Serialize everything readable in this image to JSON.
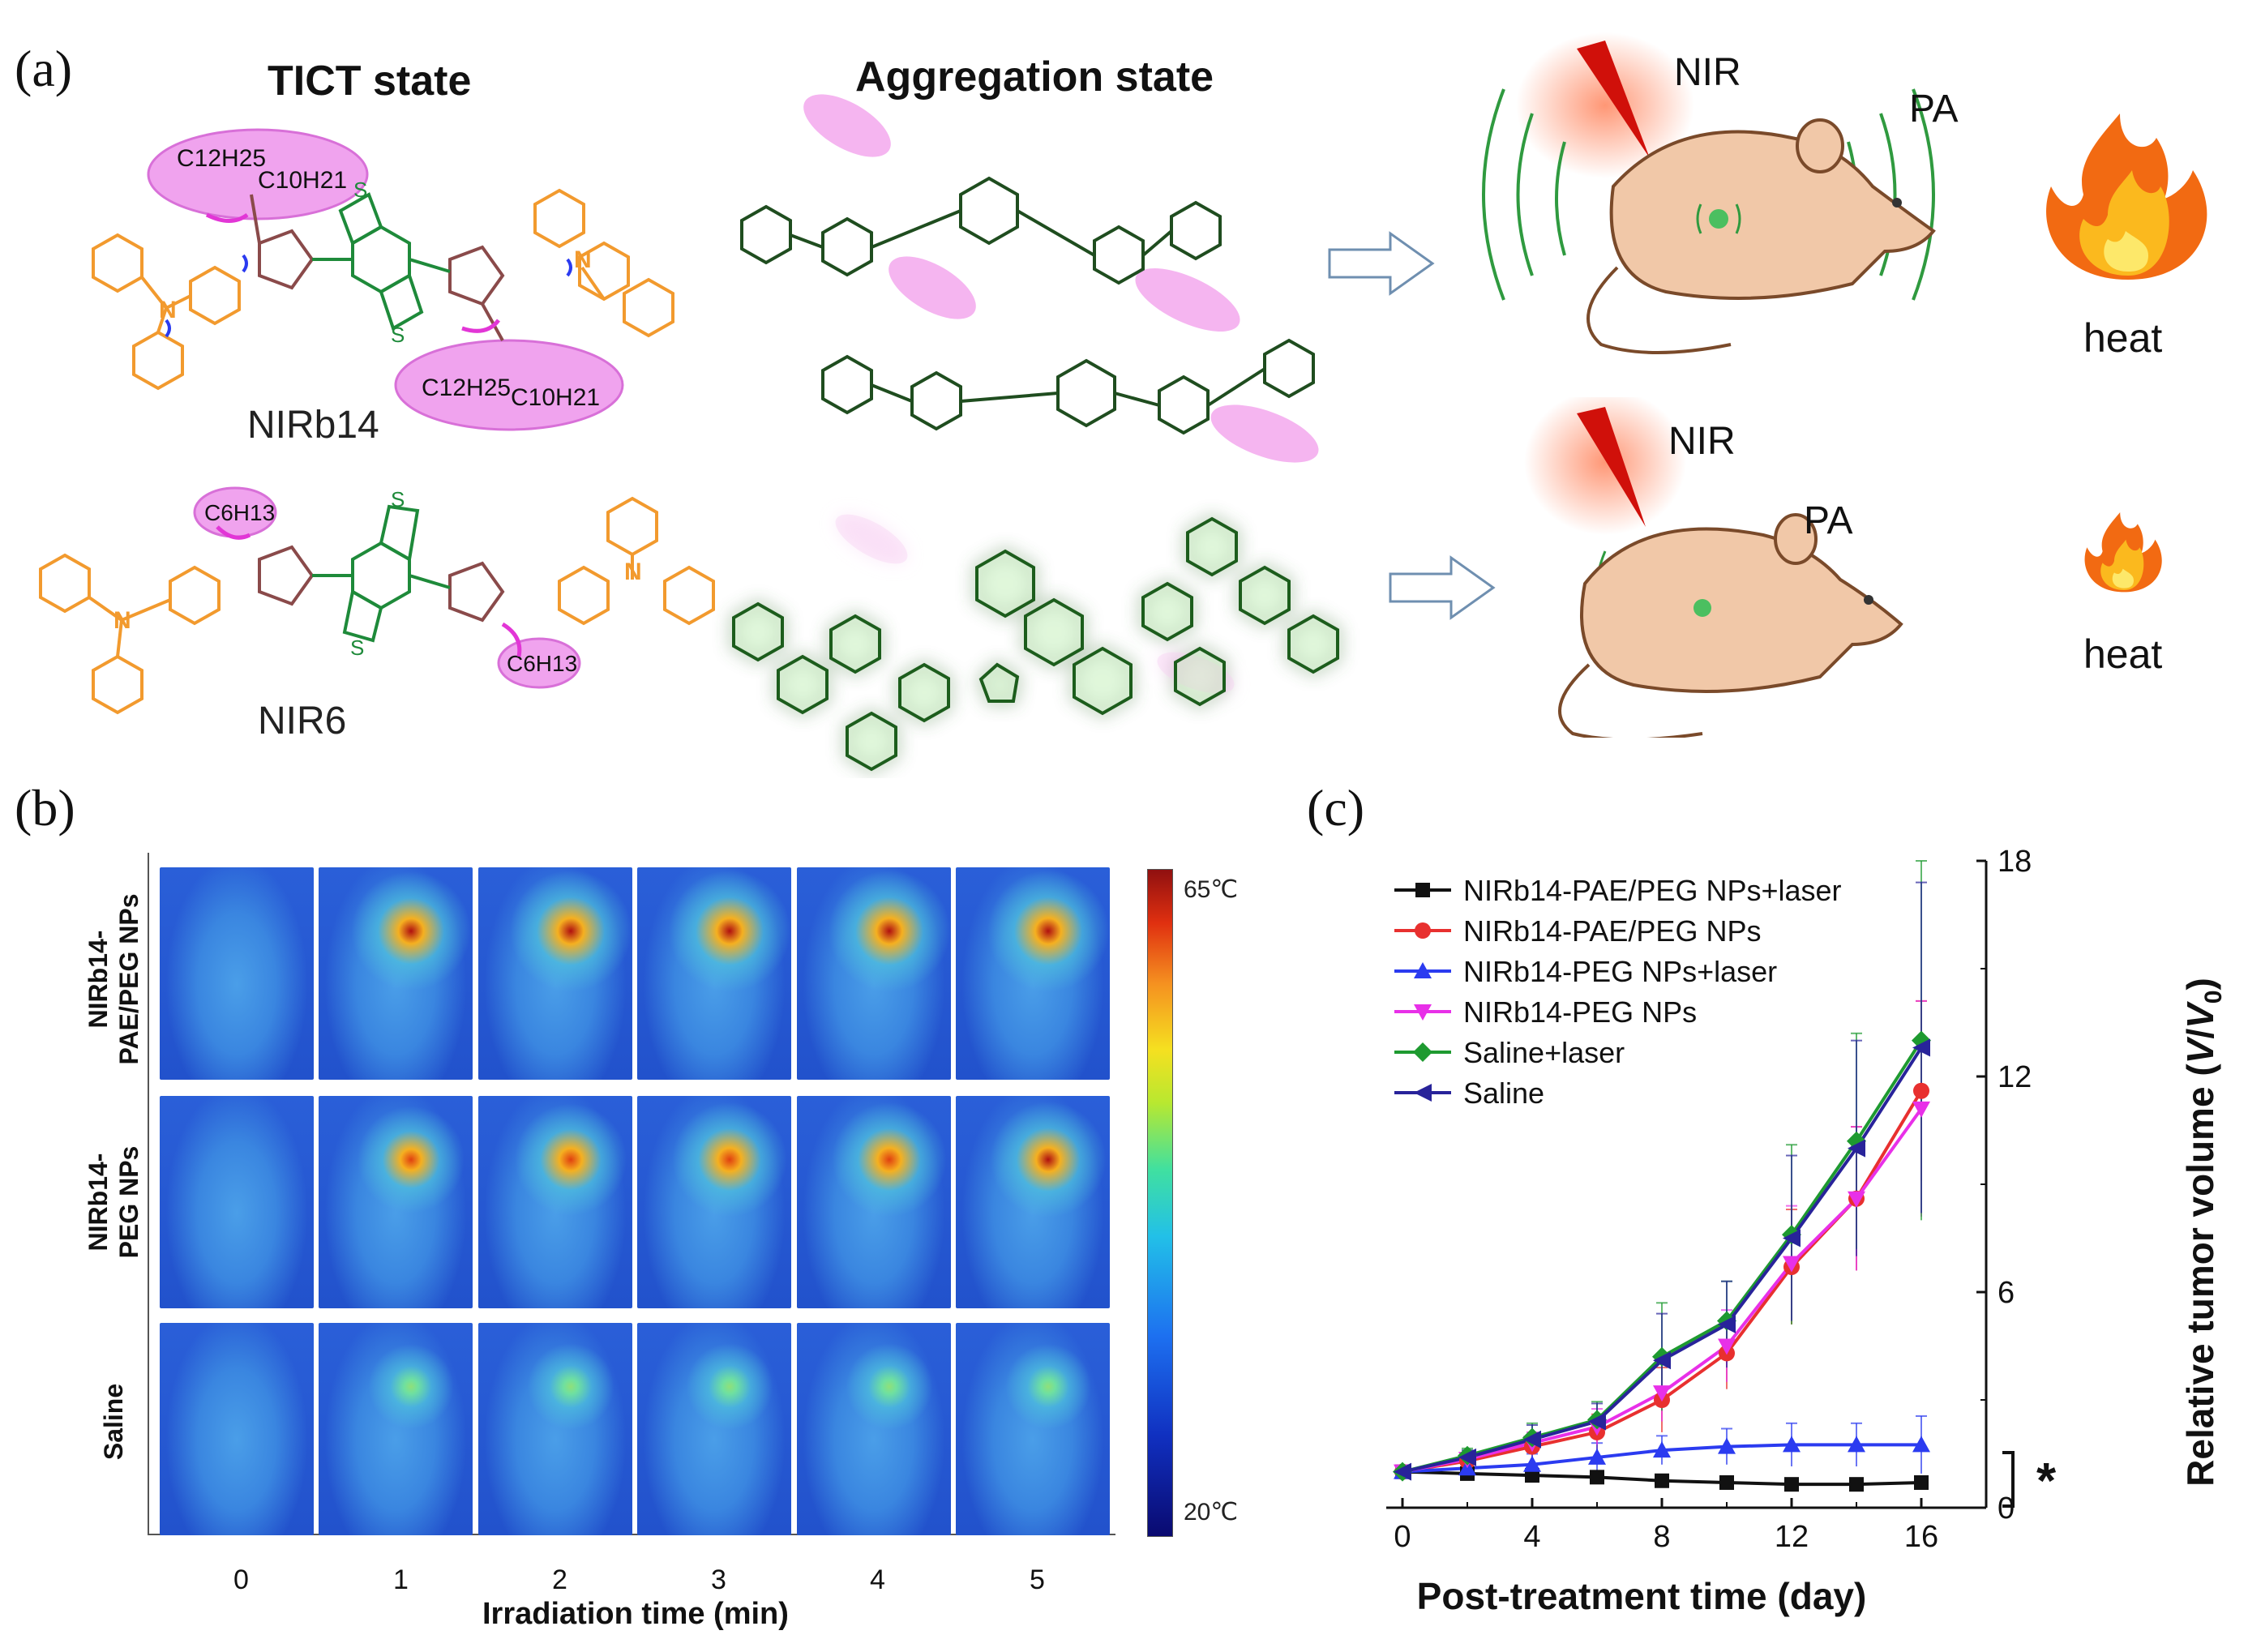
{
  "figure": {
    "panel_a": {
      "label": "(a)",
      "tict_heading": "TICT state",
      "aggregation_heading": "Aggregation state",
      "molecule_1": {
        "name": "NIRb14",
        "chain_1": "C12H25",
        "chain_2": "C10H21"
      },
      "molecule_2": {
        "name": "NIR6",
        "chain": "C6H13"
      },
      "atoms": {
        "sulfur": "S",
        "nitrogen": "N"
      },
      "top_scene": {
        "nir": "NIR",
        "pa": "PA",
        "heat": "heat"
      },
      "bottom_scene": {
        "nir": "NIR",
        "pa": "PA",
        "heat": "heat"
      }
    },
    "panel_b": {
      "label": "(b)",
      "rows": [
        {
          "line1": "NIRb14-",
          "line2": "PAE/PEG NPs",
          "intensities": [
            0.0,
            0.95,
            1.0,
            1.0,
            1.0,
            1.0
          ]
        },
        {
          "line1": "NIRb14-",
          "line2": "PEG NPs",
          "intensities": [
            0.0,
            0.7,
            0.8,
            0.85,
            0.85,
            0.88
          ]
        },
        {
          "line1": "Saline",
          "line2": "",
          "intensities": [
            0.0,
            0.25,
            0.28,
            0.28,
            0.28,
            0.26
          ]
        }
      ],
      "time_ticks": [
        "0",
        "1",
        "2",
        "3",
        "4",
        "5"
      ],
      "xlabel": "Irradiation time (min)",
      "colorbar": {
        "max_label": "65℃",
        "min_label": "20℃"
      }
    },
    "panel_c": {
      "label": "(c)",
      "significance": "*"
    }
  },
  "chart_data": {
    "type": "line",
    "title": "",
    "xlabel": "Post-treatment time (day)",
    "ylabel": "Relative tumor volume (V/V0)",
    "ylabel_parts": {
      "prefix": "Relative tumor volume (",
      "v": "V",
      "slash": "/",
      "v0": "V",
      "sub": "0",
      "suffix": ")"
    },
    "x": [
      0,
      2,
      4,
      6,
      8,
      10,
      12,
      14,
      16
    ],
    "xlim": [
      -0.5,
      18
    ],
    "ylim": [
      0,
      18
    ],
    "xticks": [
      0,
      4,
      8,
      12,
      16
    ],
    "yticks": [
      0,
      6,
      12,
      18
    ],
    "y_axis_side": "right",
    "legend_position": "top-left",
    "series": [
      {
        "name": "NIRb14-PAE/PEG NPs+laser",
        "color": "#111111",
        "marker": "square",
        "values": [
          1.0,
          0.95,
          0.9,
          0.85,
          0.75,
          0.7,
          0.65,
          0.65,
          0.7
        ],
        "errors": [
          0.1,
          0.1,
          0.1,
          0.1,
          0.1,
          0.1,
          0.1,
          0.1,
          0.1
        ]
      },
      {
        "name": "NIRb14-PAE/PEG NPs",
        "color": "#e8302f",
        "marker": "circle",
        "values": [
          1.0,
          1.3,
          1.7,
          2.1,
          3.0,
          4.3,
          6.7,
          8.6,
          11.6
        ],
        "errors": [
          0.1,
          0.2,
          0.3,
          0.5,
          0.9,
          1.0,
          1.6,
          2.0,
          2.5
        ]
      },
      {
        "name": "NIRb14-PEG NPs+laser",
        "color": "#2b3bf0",
        "marker": "triangle-up",
        "values": [
          1.0,
          1.1,
          1.2,
          1.4,
          1.6,
          1.7,
          1.75,
          1.75,
          1.75
        ],
        "errors": [
          0.1,
          0.2,
          0.3,
          0.4,
          0.4,
          0.5,
          0.6,
          0.6,
          0.8
        ]
      },
      {
        "name": "NIRb14-PEG NPs",
        "color": "#e830e8",
        "marker": "triangle-down",
        "values": [
          1.0,
          1.35,
          1.8,
          2.25,
          3.2,
          4.5,
          6.8,
          8.6,
          11.1
        ],
        "errors": [
          0.1,
          0.2,
          0.3,
          0.5,
          0.8,
          1.0,
          1.6,
          2.0,
          3.0
        ]
      },
      {
        "name": "Saline+laser",
        "color": "#1e9a30",
        "marker": "diamond",
        "values": [
          1.0,
          1.45,
          1.95,
          2.45,
          4.2,
          5.2,
          7.6,
          10.2,
          13.0
        ],
        "errors": [
          0.1,
          0.2,
          0.4,
          0.5,
          1.5,
          1.1,
          2.5,
          3.0,
          5.0
        ]
      },
      {
        "name": "Saline",
        "color": "#28239a",
        "marker": "triangle-left",
        "values": [
          1.0,
          1.4,
          1.9,
          2.4,
          4.1,
          5.1,
          7.5,
          10.0,
          12.8
        ],
        "errors": [
          0.1,
          0.2,
          0.4,
          0.5,
          1.3,
          1.2,
          2.3,
          3.0,
          4.6
        ]
      }
    ]
  }
}
